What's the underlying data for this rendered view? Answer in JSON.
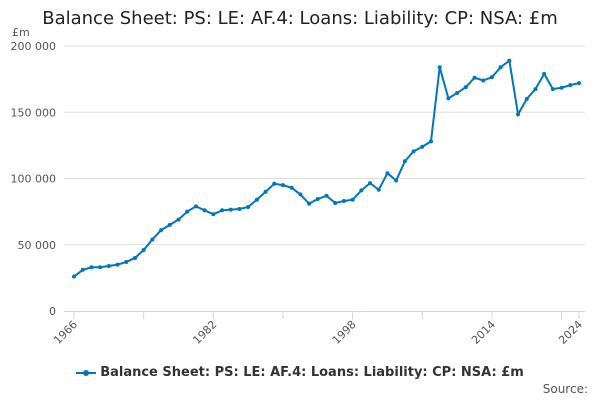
{
  "chart_data": {
    "type": "line",
    "title": "Balance Sheet: PS: LE: AF.4: Loans: Liability: CP: NSA: £m",
    "ylabel": "£m",
    "xlabel": "",
    "ylim": [
      0,
      200000
    ],
    "xlim": [
      1966,
      2024
    ],
    "yticks": [
      0,
      50000,
      100000,
      150000,
      200000
    ],
    "ytick_labels": [
      "0",
      "50 000",
      "100 000",
      "150 000",
      "200 000"
    ],
    "xtick_labels": [
      "1966",
      "1982",
      "1998",
      "2014",
      "2024"
    ],
    "grid": true,
    "legend_position": "bottom",
    "series_color": "#0077bb",
    "series": [
      {
        "name": "Balance Sheet: PS: LE: AF.4: Loans: Liability: CP: NSA: £m",
        "x": [
          1966,
          1967,
          1968,
          1969,
          1970,
          1971,
          1972,
          1973,
          1974,
          1975,
          1976,
          1977,
          1978,
          1979,
          1980,
          1981,
          1982,
          1983,
          1984,
          1985,
          1986,
          1987,
          1988,
          1989,
          1990,
          1991,
          1992,
          1993,
          1994,
          1995,
          1996,
          1997,
          1998,
          1999,
          2000,
          2001,
          2002,
          2003,
          2004,
          2005,
          2006,
          2007,
          2008,
          2009,
          2010,
          2011,
          2012,
          2013,
          2014,
          2015,
          2016,
          2017,
          2018,
          2019,
          2020,
          2021,
          2022,
          2023,
          2024
        ],
        "values": [
          26000,
          31000,
          33000,
          33000,
          34000,
          35000,
          37000,
          40000,
          46000,
          54000,
          61000,
          65000,
          69000,
          75000,
          79000,
          76000,
          73000,
          76000,
          76500,
          77000,
          78500,
          84000,
          90000,
          96000,
          95000,
          93000,
          88000,
          81000,
          84500,
          87000,
          81500,
          83000,
          84000,
          91000,
          96500,
          91500,
          104000,
          98500,
          113000,
          120500,
          124000,
          128000,
          184000,
          160500,
          164500,
          169000,
          176000,
          174000,
          176500,
          184000,
          189000,
          148500,
          160000,
          167500,
          179000,
          167500,
          168500,
          170500,
          172000
        ]
      }
    ]
  },
  "footer": {
    "source_label": "Source:"
  }
}
